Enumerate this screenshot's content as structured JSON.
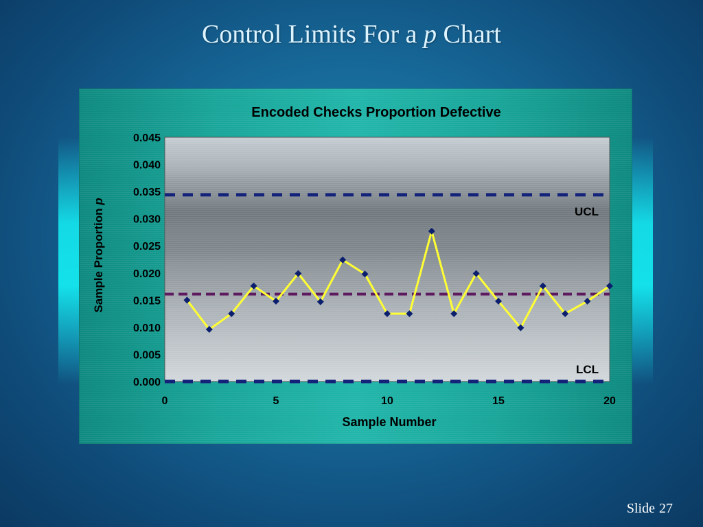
{
  "slide": {
    "title_main": "Control Limits For a ",
    "title_italic": "p",
    "title_end": " Chart",
    "slide_label": "Slide",
    "slide_number": "27"
  },
  "chart_data": {
    "type": "line",
    "title": "Encoded Checks Proportion Defective",
    "xlabel": "Sample Number",
    "ylabel_main": "Sample Proportion ",
    "ylabel_italic": "p",
    "xlim": [
      0,
      20
    ],
    "ylim": [
      0,
      0.045
    ],
    "xticks": [
      0,
      5,
      10,
      15,
      20
    ],
    "yticks": [
      "0.000",
      "0.005",
      "0.010",
      "0.015",
      "0.020",
      "0.025",
      "0.030",
      "0.035",
      "0.040",
      "0.045"
    ],
    "grid": true,
    "series": [
      {
        "x": [
          1,
          2,
          3,
          4,
          5,
          6,
          7,
          8,
          9,
          10,
          11,
          12,
          13,
          14,
          15,
          16,
          17,
          18,
          19,
          20
        ],
        "values": [
          0.015,
          0.0096,
          0.0125,
          0.0176,
          0.0148,
          0.0199,
          0.0147,
          0.0224,
          0.0198,
          0.0125,
          0.0125,
          0.0277,
          0.0125,
          0.0199,
          0.0148,
          0.0099,
          0.0176,
          0.0125,
          0.0148,
          0.0176
        ],
        "color": "#ffff33",
        "marker_color": "#0b1f6e"
      }
    ],
    "control_lines": [
      {
        "label": "UCL",
        "value": 0.0344,
        "color": "#14237a"
      },
      {
        "label": "",
        "value": 0.0161,
        "color": "#5e1a5e"
      },
      {
        "label": "LCL",
        "value": 0.0,
        "color": "#14237a"
      }
    ]
  }
}
